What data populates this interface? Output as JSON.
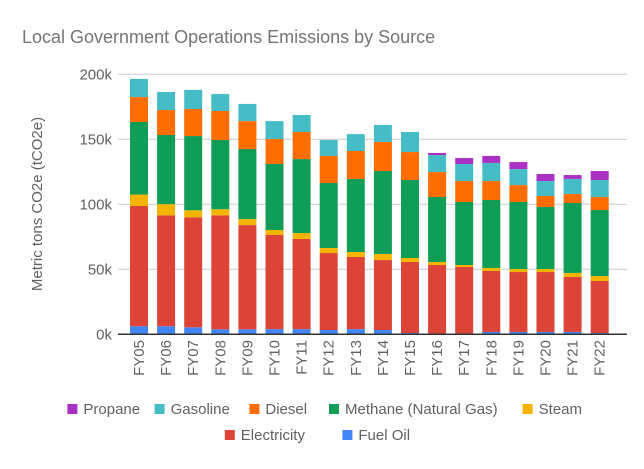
{
  "chart_data": {
    "type": "bar",
    "stacked": true,
    "title": "Local Government Operations Emissions by Source",
    "xlabel": "",
    "ylabel": "Metric tons CO2e (tCO2e)",
    "ylim": [
      0,
      200000
    ],
    "yticks": [
      0,
      50000,
      100000,
      150000,
      200000
    ],
    "ytick_labels": [
      "0k",
      "50k",
      "100k",
      "150k",
      "200k"
    ],
    "grid": true,
    "legend_position": "bottom",
    "categories": [
      "FY05",
      "FY06",
      "FY07",
      "FY08",
      "FY09",
      "FY10",
      "FY11",
      "FY12",
      "FY13",
      "FY14",
      "FY15",
      "FY16",
      "FY17",
      "FY18",
      "FY19",
      "FY20",
      "FY21",
      "FY22"
    ],
    "series": [
      {
        "name": "Fuel Oil",
        "color": "#4285f4",
        "values": [
          6200,
          6200,
          5400,
          3800,
          3800,
          4000,
          4000,
          3300,
          4000,
          3300,
          1000,
          300,
          300,
          1800,
          1800,
          1800,
          1800,
          1000
        ]
      },
      {
        "name": "Electricity",
        "color": "#db4437",
        "values": [
          92500,
          85300,
          84600,
          87700,
          80200,
          72400,
          69300,
          59200,
          55500,
          53800,
          54600,
          53000,
          51500,
          46900,
          46100,
          46100,
          42300,
          40000
        ]
      },
      {
        "name": "Steam",
        "color": "#f4b400",
        "values": [
          8800,
          8600,
          5400,
          4700,
          4600,
          3800,
          4600,
          3900,
          3800,
          4700,
          3100,
          2300,
          1500,
          2300,
          2300,
          2300,
          3100,
          3800
        ]
      },
      {
        "name": "Methane (Natural Gas)",
        "color": "#0f9d58",
        "values": [
          55800,
          53200,
          57100,
          53300,
          53900,
          50800,
          56900,
          50000,
          56200,
          63800,
          60000,
          50000,
          48500,
          52300,
          51600,
          47700,
          53800,
          50800
        ]
      },
      {
        "name": "Diesel",
        "color": "#ff6d01",
        "values": [
          19200,
          19200,
          20800,
          22300,
          21500,
          19200,
          20800,
          20800,
          21500,
          22400,
          21500,
          19200,
          16100,
          14600,
          13000,
          8500,
          6900,
          10000
        ]
      },
      {
        "name": "Gasoline",
        "color": "#46bdc6",
        "values": [
          13900,
          13900,
          14700,
          13000,
          13200,
          13800,
          13100,
          12300,
          13000,
          13000,
          15400,
          13100,
          13100,
          13900,
          12300,
          11500,
          11600,
          13100
        ]
      },
      {
        "name": "Propane",
        "color": "#ab30c4",
        "values": [
          0,
          0,
          0,
          0,
          0,
          0,
          0,
          0,
          0,
          0,
          0,
          1600,
          4600,
          5400,
          5400,
          5400,
          3000,
          6900
        ]
      }
    ],
    "legend": {
      "row1": [
        "Propane",
        "Gasoline",
        "Diesel",
        "Methane (Natural Gas)",
        "Steam"
      ],
      "row2": [
        "Electricity",
        "Fuel Oil"
      ]
    }
  }
}
